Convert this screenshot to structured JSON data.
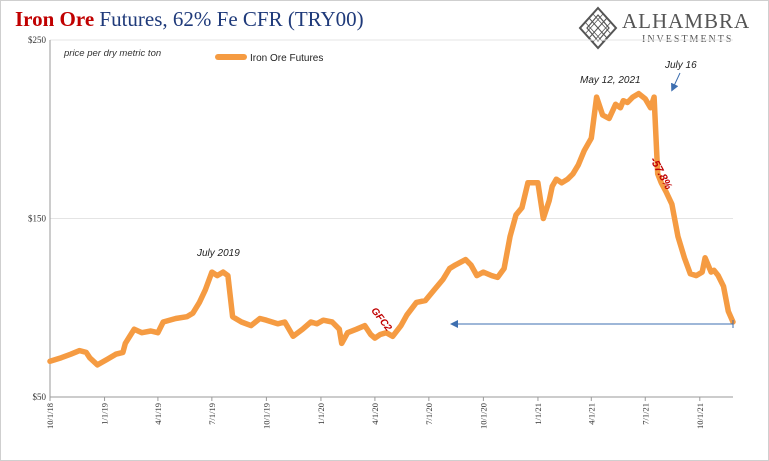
{
  "header": {
    "title_bold": "Iron Ore",
    "title_rest": " Futures, 62% Fe CFR (TRY00)"
  },
  "logo": {
    "name": "ALHAMBRA",
    "sub": "INVESTMENTS",
    "icon": "diamond-lattice-icon"
  },
  "colors": {
    "series": "#f59b42",
    "title_red": "#c00000",
    "title_blue": "#1f3a7a",
    "annotation_red": "#c00000",
    "arrow": "#3e6fb0"
  },
  "chart_data": {
    "type": "line",
    "units_label": "price per dry metric ton",
    "ylim": [
      50,
      250
    ],
    "yticks": [
      "$50",
      "$150",
      "$250"
    ],
    "ytick_values": [
      50,
      150,
      250
    ],
    "xlim": [
      "2018-10-01",
      "2021-11-26"
    ],
    "xticks": [
      "10/1/18",
      "1/1/19",
      "4/1/19",
      "7/1/19",
      "10/1/19",
      "1/1/20",
      "4/1/20",
      "7/1/20",
      "10/1/20",
      "1/1/21",
      "4/1/21",
      "7/1/21",
      "10/1/21"
    ],
    "xtick_dates": [
      "2018-10-01",
      "2019-01-01",
      "2019-04-01",
      "2019-07-01",
      "2019-10-01",
      "2020-01-01",
      "2020-04-01",
      "2020-07-01",
      "2020-10-01",
      "2021-01-01",
      "2021-04-01",
      "2021-07-01",
      "2021-10-01"
    ],
    "grid": true,
    "legend_position": "top-left",
    "series": [
      {
        "name": "Iron Ore Futures",
        "x": [
          "2018-10-01",
          "2018-10-20",
          "2018-11-05",
          "2018-11-20",
          "2018-12-01",
          "2018-12-07",
          "2018-12-20",
          "2019-01-05",
          "2019-01-20",
          "2019-02-01",
          "2019-02-05",
          "2019-02-20",
          "2019-03-05",
          "2019-03-20",
          "2019-04-01",
          "2019-04-10",
          "2019-05-01",
          "2019-05-20",
          "2019-05-30",
          "2019-06-10",
          "2019-06-20",
          "2019-07-01",
          "2019-07-10",
          "2019-07-20",
          "2019-07-28",
          "2019-08-05",
          "2019-08-20",
          "2019-09-05",
          "2019-09-20",
          "2019-10-01",
          "2019-10-20",
          "2019-11-01",
          "2019-11-15",
          "2019-12-01",
          "2019-12-15",
          "2019-12-25",
          "2020-01-05",
          "2020-01-20",
          "2020-02-01",
          "2020-02-05",
          "2020-02-15",
          "2020-03-01",
          "2020-03-15",
          "2020-03-25",
          "2020-04-01",
          "2020-04-10",
          "2020-04-20",
          "2020-05-01",
          "2020-05-15",
          "2020-05-25",
          "2020-06-10",
          "2020-06-25",
          "2020-07-10",
          "2020-07-25",
          "2020-08-05",
          "2020-08-15",
          "2020-09-01",
          "2020-09-10",
          "2020-09-20",
          "2020-10-01",
          "2020-10-15",
          "2020-10-25",
          "2020-11-05",
          "2020-11-15",
          "2020-11-25",
          "2020-12-05",
          "2020-12-15",
          "2020-12-20",
          "2021-01-01",
          "2021-01-10",
          "2021-01-20",
          "2021-01-25",
          "2021-02-01",
          "2021-02-10",
          "2021-02-20",
          "2021-03-01",
          "2021-03-10",
          "2021-03-20",
          "2021-04-01",
          "2021-04-10",
          "2021-04-20",
          "2021-05-01",
          "2021-05-12",
          "2021-05-20",
          "2021-05-25",
          "2021-06-01",
          "2021-06-10",
          "2021-06-20",
          "2021-07-01",
          "2021-07-10",
          "2021-07-16",
          "2021-07-22",
          "2021-07-28",
          "2021-08-05",
          "2021-08-15",
          "2021-08-25",
          "2021-09-05",
          "2021-09-15",
          "2021-09-25",
          "2021-10-05",
          "2021-10-10",
          "2021-10-20",
          "2021-10-25",
          "2021-11-01",
          "2021-11-10",
          "2021-11-18",
          "2021-11-26"
        ],
        "y": [
          70,
          72,
          74,
          76,
          75,
          72,
          68,
          71,
          74,
          75,
          80,
          88,
          86,
          87,
          86,
          92,
          94,
          95,
          97,
          103,
          110,
          120,
          118,
          120,
          118,
          95,
          92,
          90,
          94,
          93,
          91,
          92,
          84,
          88,
          92,
          91,
          93,
          92,
          88,
          80,
          86,
          88,
          90,
          85,
          83,
          85,
          86,
          84,
          90,
          96,
          103,
          104,
          110,
          116,
          122,
          124,
          127,
          124,
          118,
          120,
          118,
          117,
          122,
          140,
          152,
          156,
          170,
          170,
          170,
          150,
          160,
          168,
          172,
          170,
          172,
          175,
          180,
          188,
          195,
          218,
          208,
          206,
          214,
          212,
          216,
          215,
          218,
          220,
          217,
          212,
          218,
          175,
          170,
          165,
          158,
          140,
          128,
          119,
          118,
          120,
          128,
          120,
          121,
          118,
          112,
          98,
          92
        ]
      }
    ],
    "annotations": [
      {
        "text": "July 2019"
      },
      {
        "text": "GFC2"
      },
      {
        "text": "May 12, 2021"
      },
      {
        "text": "July 16"
      },
      {
        "text": "-57.8%"
      }
    ]
  }
}
